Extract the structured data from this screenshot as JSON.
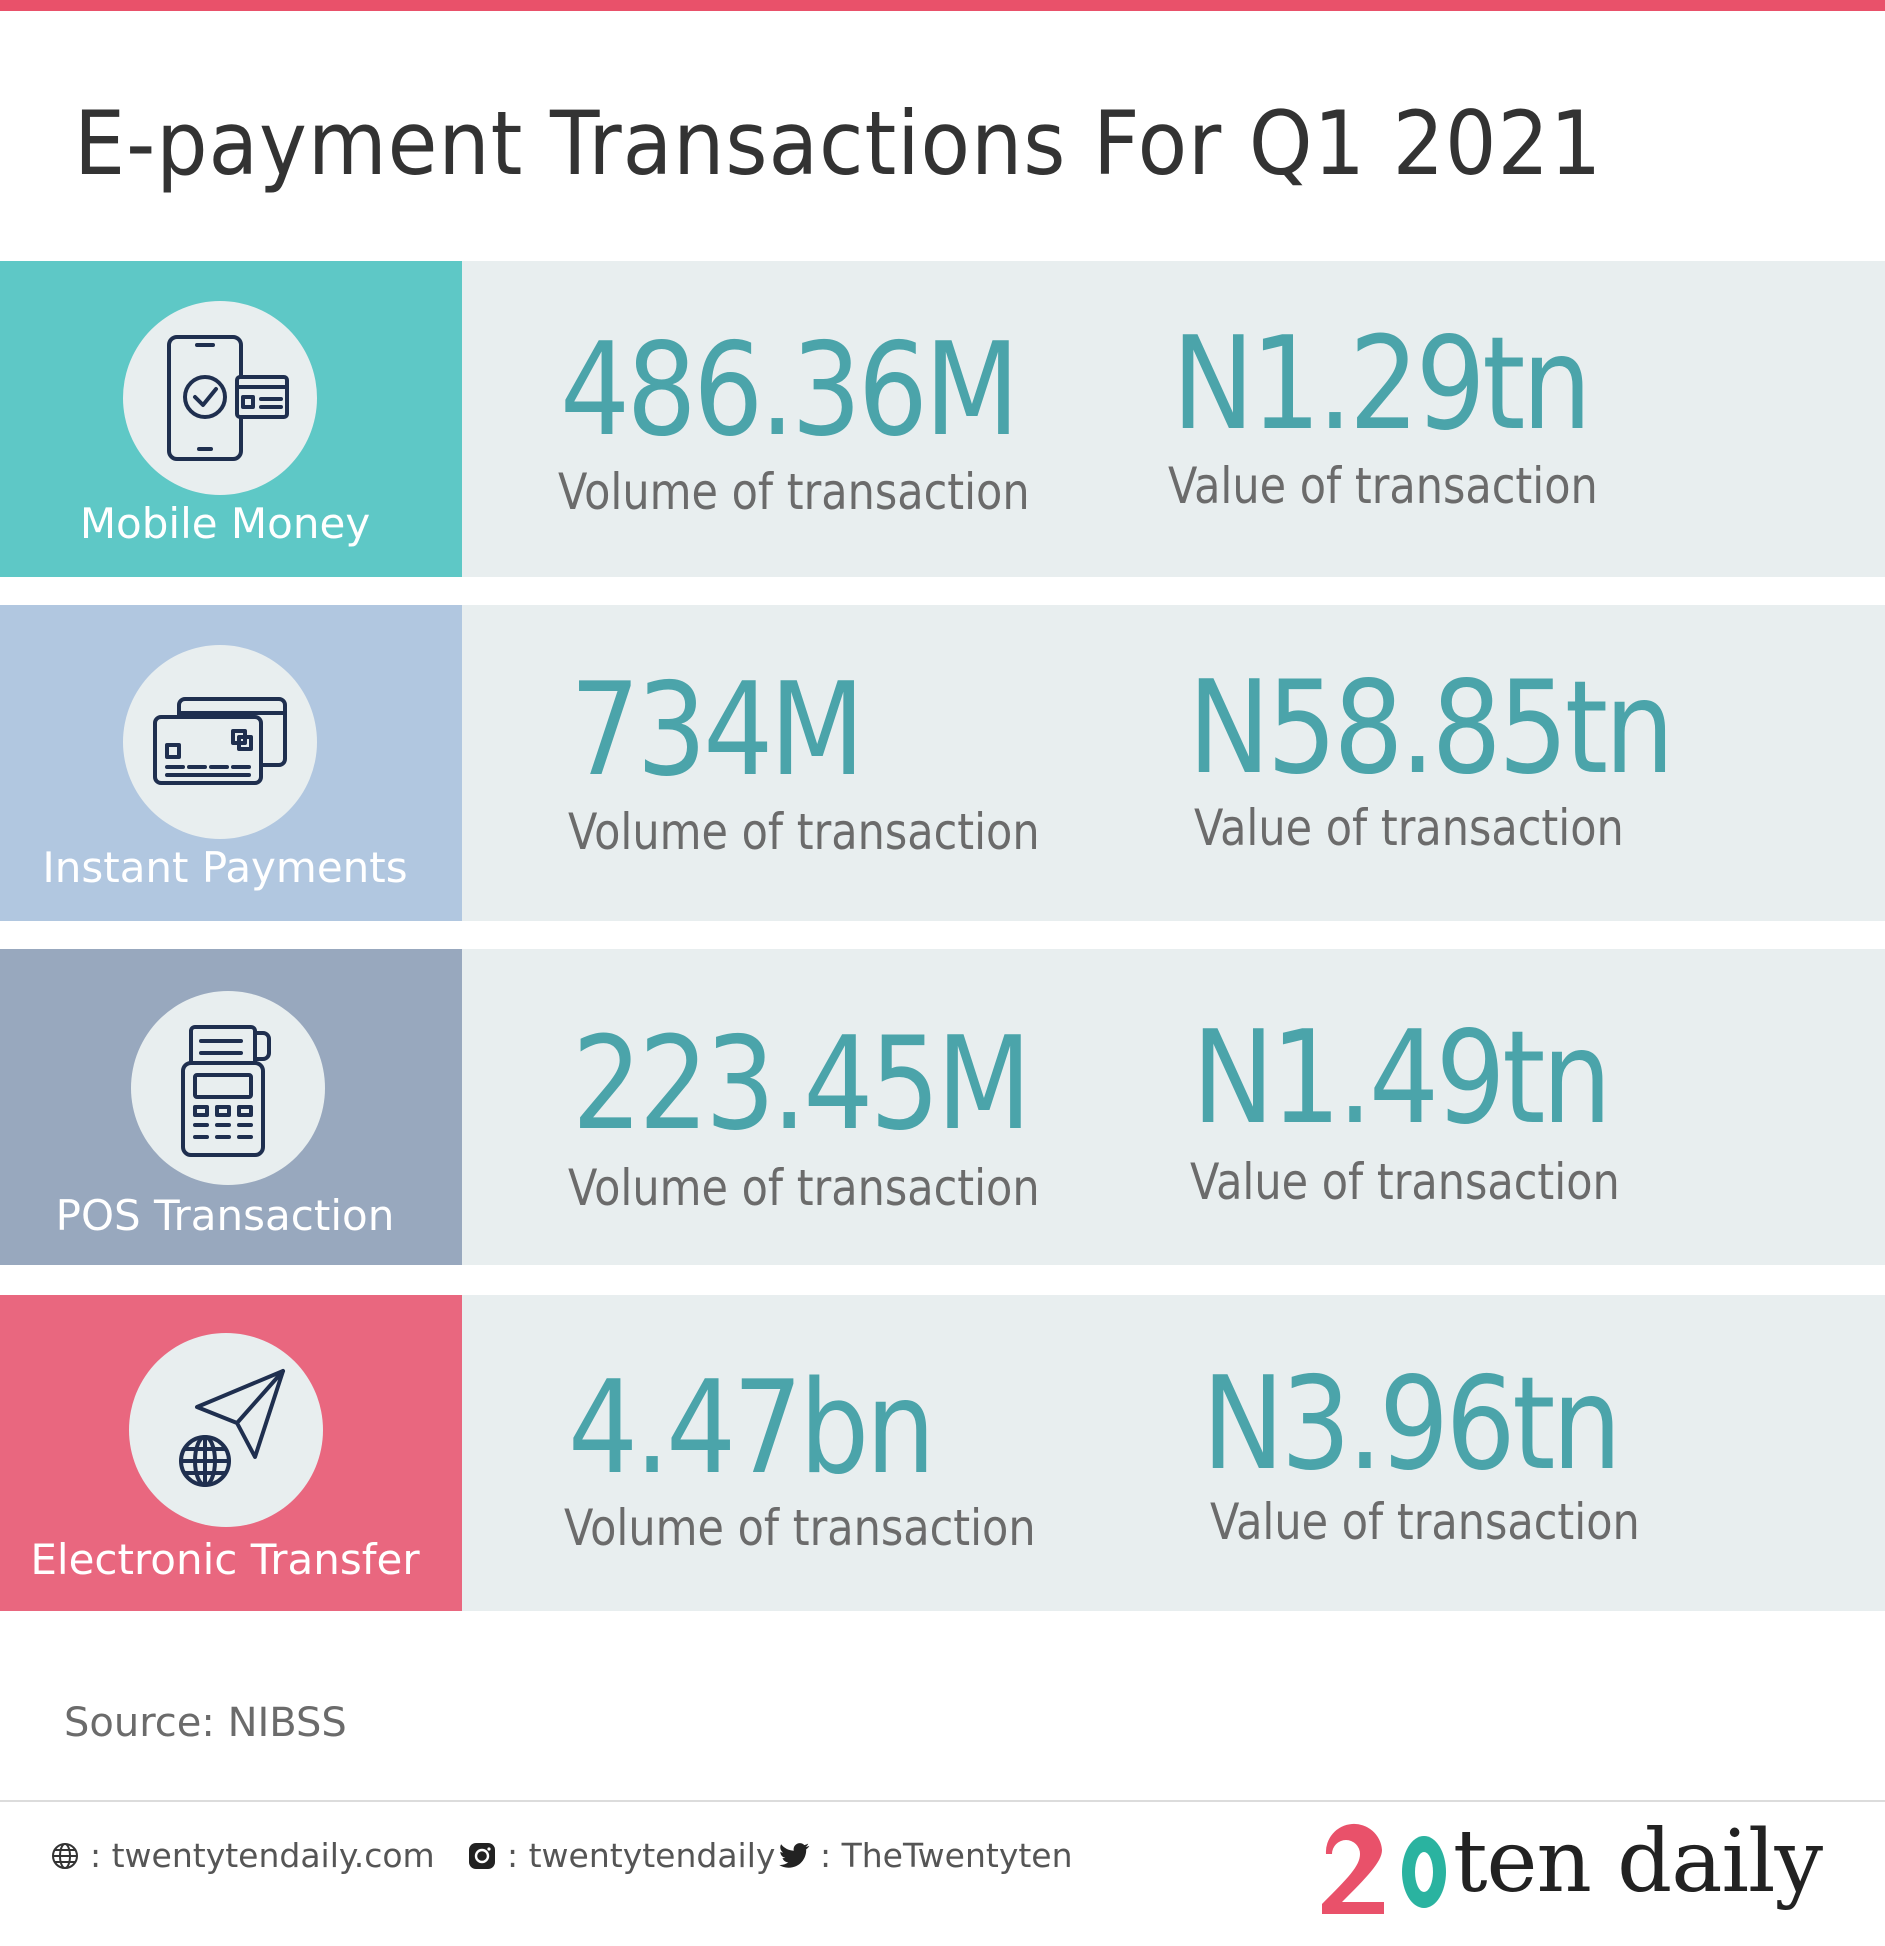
{
  "header": {
    "title": "E-payment Transactions For Q1 2021"
  },
  "rows": [
    {
      "category": "Mobile Money",
      "side_color": "#5ec8c6",
      "icon": "mobile-payment-icon",
      "volume": "486.36M",
      "volume_label": "Volume of transaction",
      "value": "N1.29tn",
      "value_label": "Value of transaction"
    },
    {
      "category": "Instant Payments",
      "side_color": "#b1c7e0",
      "icon": "credit-cards-icon",
      "volume": "734M",
      "volume_label": "Volume of transaction",
      "value": "N58.85tn",
      "value_label": "Value of transaction"
    },
    {
      "category": "POS Transaction",
      "side_color": "#98a8be",
      "icon": "pos-terminal-icon",
      "volume": "223.45M",
      "volume_label": "Volume of transaction",
      "value": "N1.49tn",
      "value_label": "Value of transaction"
    },
    {
      "category": "Electronic Transfer",
      "side_color": "#e9677f",
      "icon": "paper-plane-globe-icon",
      "volume": "4.47bn",
      "volume_label": "Volume of transaction",
      "value": "N3.96tn",
      "value_label": "Value of transaction"
    }
  ],
  "source": "Source: NIBSS",
  "footer": {
    "website": ": twentytendaily.com",
    "instagram": ": twentytendaily",
    "twitter": ": TheTwentyten",
    "logo_text": "ten daily"
  },
  "colors": {
    "accent": "#e9516a",
    "number": "#4ba4aa",
    "row_bg": "#e8eeef",
    "icon_stroke": "#1f2f4f"
  }
}
